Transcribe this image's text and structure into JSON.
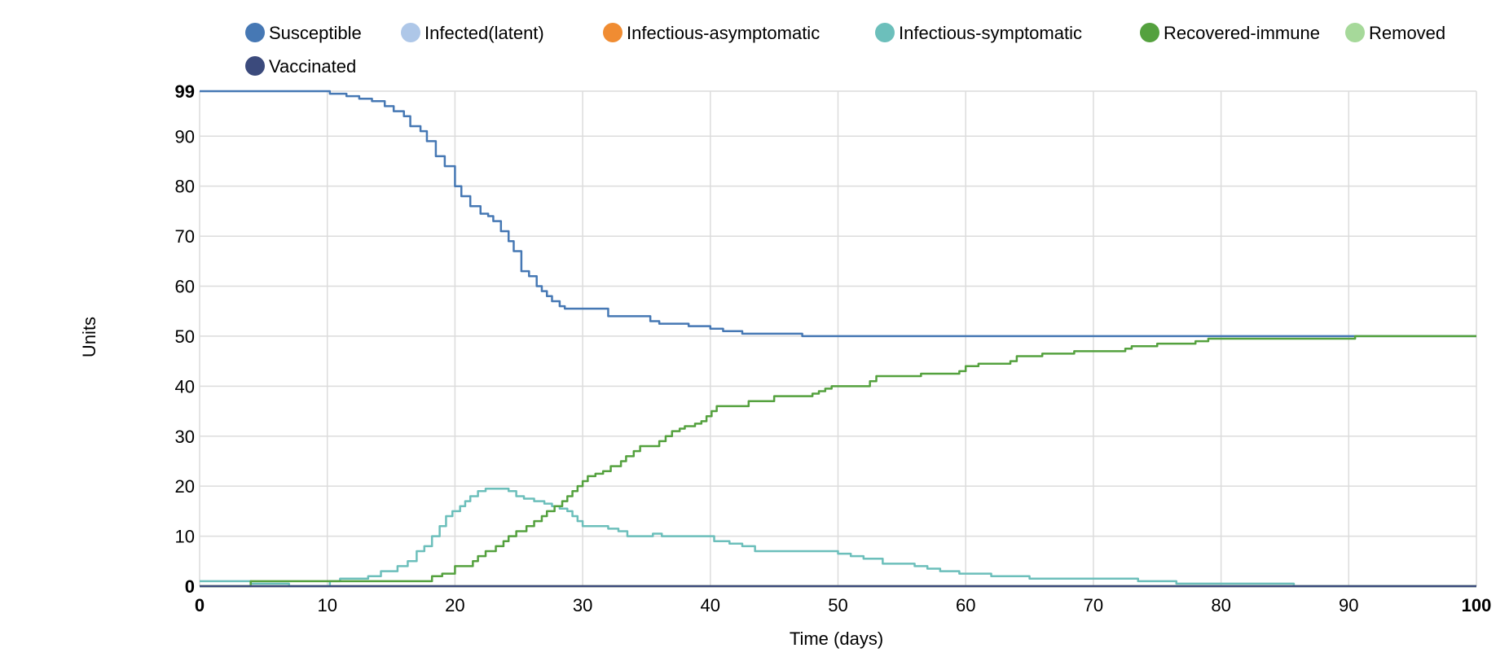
{
  "chart_data": {
    "type": "line",
    "title": "",
    "xlabel": "Time (days)",
    "ylabel": "Units",
    "xlim": [
      0,
      100
    ],
    "ylim": [
      0,
      99
    ],
    "x_ticks": [
      0,
      10,
      20,
      30,
      40,
      50,
      60,
      70,
      80,
      90,
      100
    ],
    "y_ticks": [
      0,
      10,
      20,
      30,
      40,
      50,
      60,
      70,
      80,
      90,
      99
    ],
    "grid": true,
    "legend_position": "top",
    "series": [
      {
        "name": "Susceptible",
        "color": "#4678b4",
        "points": [
          [
            0,
            99
          ],
          [
            9.5,
            99
          ],
          [
            10.2,
            98.5
          ],
          [
            11.5,
            98
          ],
          [
            12.5,
            97.5
          ],
          [
            13.5,
            97
          ],
          [
            14.5,
            96
          ],
          [
            15.2,
            95
          ],
          [
            16,
            94
          ],
          [
            16.5,
            92
          ],
          [
            17.3,
            91
          ],
          [
            17.8,
            89
          ],
          [
            18.5,
            86
          ],
          [
            19.2,
            84
          ],
          [
            20,
            80
          ],
          [
            20.5,
            78
          ],
          [
            21.2,
            76
          ],
          [
            22,
            74.5
          ],
          [
            22.6,
            74
          ],
          [
            23,
            73
          ],
          [
            23.6,
            71
          ],
          [
            24.2,
            69
          ],
          [
            24.6,
            67
          ],
          [
            25.2,
            63
          ],
          [
            25.8,
            62
          ],
          [
            26.4,
            60
          ],
          [
            26.8,
            59
          ],
          [
            27.2,
            58
          ],
          [
            27.6,
            57
          ],
          [
            28.2,
            56
          ],
          [
            28.6,
            55.5
          ],
          [
            31.5,
            55.5
          ],
          [
            32,
            54
          ],
          [
            34.8,
            54
          ],
          [
            35.3,
            53
          ],
          [
            36,
            52.5
          ],
          [
            38,
            52.5
          ],
          [
            38.3,
            52
          ],
          [
            40,
            51.5
          ],
          [
            41,
            51
          ],
          [
            42,
            51
          ],
          [
            42.5,
            50.5
          ],
          [
            47,
            50.5
          ],
          [
            47.2,
            50
          ],
          [
            100,
            50
          ]
        ]
      },
      {
        "name": "Infected(latent)",
        "color": "#aec7e8",
        "points": [
          [
            0,
            0
          ],
          [
            100,
            0
          ]
        ]
      },
      {
        "name": "Infectious-asymptomatic",
        "color": "#f08c32",
        "points": [
          [
            0,
            0
          ],
          [
            100,
            0
          ]
        ]
      },
      {
        "name": "Infectious-symptomatic",
        "color": "#6cbfbb",
        "points": [
          [
            0,
            1
          ],
          [
            3.5,
            1
          ],
          [
            4,
            0.5
          ],
          [
            6.5,
            0.5
          ],
          [
            7,
            0
          ],
          [
            10,
            0
          ],
          [
            10.2,
            1
          ],
          [
            11,
            1.5
          ],
          [
            12.5,
            1.5
          ],
          [
            13.2,
            2
          ],
          [
            14.2,
            3
          ],
          [
            15,
            3
          ],
          [
            15.5,
            4
          ],
          [
            16.3,
            5
          ],
          [
            17,
            7
          ],
          [
            17.6,
            8
          ],
          [
            18.2,
            10
          ],
          [
            18.8,
            12
          ],
          [
            19.3,
            14
          ],
          [
            19.8,
            15
          ],
          [
            20.4,
            16
          ],
          [
            20.8,
            17
          ],
          [
            21.2,
            18
          ],
          [
            21.8,
            19
          ],
          [
            22.4,
            19.5
          ],
          [
            23.2,
            19.5
          ],
          [
            24.2,
            19
          ],
          [
            24.8,
            18
          ],
          [
            25.4,
            17.5
          ],
          [
            26.2,
            17
          ],
          [
            27,
            16.5
          ],
          [
            27.6,
            16
          ],
          [
            28.2,
            15.5
          ],
          [
            28.8,
            15
          ],
          [
            29.2,
            14
          ],
          [
            29.6,
            13
          ],
          [
            30,
            12
          ],
          [
            31.5,
            12
          ],
          [
            32,
            11.5
          ],
          [
            32.8,
            11
          ],
          [
            33.5,
            10
          ],
          [
            35,
            10
          ],
          [
            35.5,
            10.5
          ],
          [
            36.2,
            10
          ],
          [
            40,
            10
          ],
          [
            40.3,
            9
          ],
          [
            41.5,
            8.5
          ],
          [
            42.5,
            8
          ],
          [
            43.5,
            7
          ],
          [
            49.5,
            7
          ],
          [
            50,
            6.5
          ],
          [
            51,
            6
          ],
          [
            52,
            5.5
          ],
          [
            53,
            5.5
          ],
          [
            53.5,
            4.5
          ],
          [
            55.5,
            4.5
          ],
          [
            56,
            4
          ],
          [
            57,
            3.5
          ],
          [
            58,
            3
          ],
          [
            59,
            3
          ],
          [
            59.5,
            2.5
          ],
          [
            61.5,
            2.5
          ],
          [
            62,
            2
          ],
          [
            64.5,
            2
          ],
          [
            65,
            1.5
          ],
          [
            73,
            1.5
          ],
          [
            73.5,
            1
          ],
          [
            76,
            1
          ],
          [
            76.5,
            0.5
          ],
          [
            85.5,
            0.5
          ],
          [
            85.7,
            0
          ],
          [
            100,
            0
          ]
        ]
      },
      {
        "name": "Recovered-immune",
        "color": "#54a13e",
        "points": [
          [
            0,
            0
          ],
          [
            3.5,
            0
          ],
          [
            4,
            1
          ],
          [
            18,
            1
          ],
          [
            18.2,
            2
          ],
          [
            19,
            2.5
          ],
          [
            20,
            4
          ],
          [
            21,
            4
          ],
          [
            21.4,
            5
          ],
          [
            21.8,
            6
          ],
          [
            22.4,
            7
          ],
          [
            23.2,
            8
          ],
          [
            23.8,
            9
          ],
          [
            24.2,
            10
          ],
          [
            24.8,
            11
          ],
          [
            25.6,
            12
          ],
          [
            26.2,
            13
          ],
          [
            26.8,
            14
          ],
          [
            27.2,
            15
          ],
          [
            27.8,
            16
          ],
          [
            28.4,
            17
          ],
          [
            28.8,
            18
          ],
          [
            29.2,
            19
          ],
          [
            29.6,
            20
          ],
          [
            30,
            21
          ],
          [
            30.4,
            22
          ],
          [
            31,
            22.5
          ],
          [
            31.6,
            23
          ],
          [
            32.2,
            24
          ],
          [
            33,
            25
          ],
          [
            33.4,
            26
          ],
          [
            34,
            27
          ],
          [
            34.5,
            28
          ],
          [
            35.5,
            28
          ],
          [
            36,
            29
          ],
          [
            36.5,
            30
          ],
          [
            37,
            31
          ],
          [
            37.6,
            31.5
          ],
          [
            38,
            32
          ],
          [
            38.8,
            32.5
          ],
          [
            39.3,
            33
          ],
          [
            39.7,
            34
          ],
          [
            40.1,
            35
          ],
          [
            40.5,
            36
          ],
          [
            42.5,
            36
          ],
          [
            43,
            37
          ],
          [
            44.5,
            37
          ],
          [
            45,
            38
          ],
          [
            47.5,
            38
          ],
          [
            48,
            38.5
          ],
          [
            48.5,
            39
          ],
          [
            49,
            39.5
          ],
          [
            49.5,
            40
          ],
          [
            52,
            40
          ],
          [
            52.5,
            41
          ],
          [
            53,
            42
          ],
          [
            56,
            42
          ],
          [
            56.5,
            42.5
          ],
          [
            59,
            42.5
          ],
          [
            59.5,
            43
          ],
          [
            60,
            44
          ],
          [
            61,
            44.5
          ],
          [
            63,
            44.5
          ],
          [
            63.5,
            45
          ],
          [
            64,
            46
          ],
          [
            65.5,
            46
          ],
          [
            66,
            46.5
          ],
          [
            68,
            46.5
          ],
          [
            68.5,
            47
          ],
          [
            72,
            47
          ],
          [
            72.5,
            47.5
          ],
          [
            73,
            48
          ],
          [
            74.5,
            48
          ],
          [
            75,
            48.5
          ],
          [
            77.5,
            48.5
          ],
          [
            78,
            49
          ],
          [
            79,
            49.5
          ],
          [
            90,
            49.5
          ],
          [
            90.5,
            50
          ],
          [
            100,
            50
          ]
        ]
      },
      {
        "name": "Removed",
        "color": "#a6d99a",
        "points": [
          [
            0,
            0
          ],
          [
            100,
            0
          ]
        ]
      },
      {
        "name": "Vaccinated",
        "color": "#3b4a7c",
        "points": [
          [
            0,
            0
          ],
          [
            100,
            0
          ]
        ]
      }
    ]
  }
}
